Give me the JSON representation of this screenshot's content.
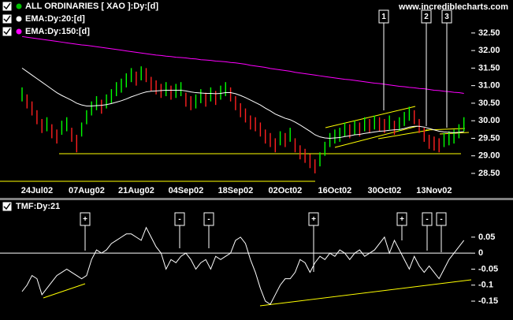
{
  "chart_data": [
    {
      "type": "ohlc",
      "watermark": "www.incrediblecharts.com",
      "categories": [
        null,
        null,
        null,
        "24Jul02",
        null,
        null,
        null,
        null,
        null,
        null,
        null,
        null,
        null,
        "07Aug02",
        null,
        null,
        null,
        null,
        null,
        null,
        null,
        null,
        null,
        "21Aug02",
        null,
        null,
        null,
        null,
        null,
        null,
        null,
        null,
        null,
        "04Sep02",
        null,
        null,
        null,
        null,
        null,
        null,
        null,
        null,
        null,
        "18Sep02",
        null,
        null,
        null,
        null,
        null,
        null,
        null,
        null,
        null,
        "02Oct02",
        null,
        null,
        null,
        null,
        null,
        null,
        null,
        null,
        null,
        "16Oct02",
        null,
        null,
        null,
        null,
        null,
        null,
        null,
        null,
        null,
        "30Oct02",
        null,
        null,
        null,
        null,
        null,
        null,
        null,
        null,
        null,
        "13Nov02",
        null,
        null,
        null,
        null,
        null,
        null
      ],
      "series": [
        {
          "name": "ALL ORDINARIES [ XAO ]:Dy:[d]",
          "color": "#00c000",
          "up_color": "#00ff00",
          "down_color": "#ff2020",
          "high": [
            30.95,
            30.75,
            30.55,
            30.3,
            30.05,
            30.1,
            29.9,
            29.75,
            30.0,
            30.1,
            29.8,
            29.6,
            29.95,
            30.3,
            30.55,
            30.7,
            30.6,
            30.75,
            30.9,
            31.1,
            31.2,
            31.35,
            31.5,
            31.4,
            31.55,
            31.5,
            31.25,
            31.15,
            31.05,
            31.1,
            31.0,
            31.05,
            31.1,
            30.8,
            30.7,
            30.75,
            30.9,
            30.8,
            30.95,
            30.85,
            31.0,
            31.1,
            30.95,
            30.7,
            30.5,
            30.35,
            30.15,
            30.1,
            29.95,
            29.75,
            29.65,
            29.5,
            29.7,
            29.65,
            29.8,
            29.5,
            29.3,
            29.2,
            29.05,
            28.9,
            29.1,
            29.4,
            29.65,
            29.75,
            29.8,
            29.95,
            29.9,
            30.0,
            29.95,
            30.1,
            30.05,
            30.15,
            30.1,
            30.05,
            30.15,
            30.0,
            30.1,
            30.25,
            30.4,
            30.3,
            30.05,
            29.8,
            29.6,
            29.55,
            29.5,
            29.65,
            29.7,
            29.75,
            29.9,
            30.1
          ],
          "low": [
            30.55,
            30.35,
            30.15,
            29.9,
            29.65,
            29.7,
            29.5,
            29.35,
            29.6,
            29.7,
            29.4,
            29.1,
            29.55,
            29.9,
            30.15,
            30.3,
            30.2,
            30.35,
            30.5,
            30.7,
            30.8,
            30.95,
            31.1,
            31.0,
            31.15,
            31.1,
            30.85,
            30.75,
            30.65,
            30.7,
            30.6,
            30.65,
            30.7,
            30.4,
            30.3,
            30.35,
            30.5,
            30.4,
            30.55,
            30.45,
            30.6,
            30.7,
            30.55,
            30.3,
            30.1,
            29.95,
            29.75,
            29.7,
            29.55,
            29.35,
            29.25,
            29.1,
            29.3,
            29.25,
            29.4,
            29.1,
            28.9,
            28.8,
            28.65,
            28.5,
            28.7,
            29.0,
            29.25,
            29.35,
            29.4,
            29.55,
            29.5,
            29.6,
            29.55,
            29.7,
            29.65,
            29.75,
            29.7,
            29.65,
            29.75,
            29.6,
            29.7,
            29.85,
            30.0,
            29.9,
            29.65,
            29.4,
            29.2,
            29.15,
            29.1,
            29.25,
            29.3,
            29.35,
            29.5,
            29.7
          ]
        },
        {
          "name": "EMA:Dy:20:[d]",
          "color": "#ffffff",
          "values": [
            31.5,
            31.4,
            31.3,
            31.2,
            31.1,
            31.0,
            30.9,
            30.8,
            30.72,
            30.65,
            30.58,
            30.5,
            30.45,
            30.42,
            30.42,
            30.43,
            30.44,
            30.46,
            30.49,
            30.53,
            30.57,
            30.62,
            30.68,
            30.73,
            30.78,
            30.82,
            30.84,
            30.85,
            30.86,
            30.87,
            30.87,
            30.87,
            30.87,
            30.85,
            30.82,
            30.8,
            30.79,
            30.78,
            30.78,
            30.77,
            30.78,
            30.8,
            30.8,
            30.77,
            30.72,
            30.66,
            30.59,
            30.52,
            30.45,
            30.36,
            30.28,
            30.19,
            30.13,
            30.07,
            30.03,
            29.96,
            29.88,
            29.79,
            29.7,
            29.6,
            29.54,
            29.51,
            29.5,
            29.51,
            29.52,
            29.55,
            29.57,
            29.6,
            29.61,
            29.64,
            29.66,
            29.68,
            29.7,
            29.71,
            29.73,
            29.74,
            29.75,
            29.78,
            29.82,
            29.84,
            29.84,
            29.82,
            29.78,
            29.74,
            29.7,
            29.68,
            29.67,
            29.66,
            29.67,
            29.69
          ]
        },
        {
          "name": "EMA:Dy:150:[d]",
          "color": "#ff00ff",
          "values": [
            32.4,
            32.38,
            32.36,
            32.34,
            32.32,
            32.3,
            32.28,
            32.26,
            32.24,
            32.22,
            32.2,
            32.18,
            32.16,
            32.15,
            32.13,
            32.11,
            32.09,
            32.07,
            32.05,
            32.03,
            32.01,
            31.99,
            31.97,
            31.95,
            31.93,
            31.91,
            31.89,
            31.87,
            31.86,
            31.84,
            31.83,
            31.81,
            31.8,
            31.79,
            31.77,
            31.76,
            31.74,
            31.73,
            31.72,
            31.7,
            31.69,
            31.68,
            31.66,
            31.65,
            31.63,
            31.61,
            31.58,
            31.56,
            31.54,
            31.52,
            31.49,
            31.47,
            31.45,
            31.43,
            31.41,
            31.38,
            31.36,
            31.34,
            31.32,
            31.3,
            31.28,
            31.26,
            31.24,
            31.22,
            31.2,
            31.18,
            31.17,
            31.15,
            31.13,
            31.11,
            31.09,
            31.07,
            31.06,
            31.04,
            31.02,
            31.0,
            30.98,
            30.97,
            30.95,
            30.94,
            30.92,
            30.91,
            30.89,
            30.87,
            30.86,
            30.84,
            30.83,
            30.81,
            30.8,
            30.78
          ]
        }
      ],
      "ylim": [
        28.23,
        33.44
      ],
      "yticks": [
        {
          "value": 28.5,
          "label": "28.50"
        },
        {
          "value": 29,
          "label": "29.00"
        },
        {
          "value": 29.5,
          "label": "29.50"
        },
        {
          "value": 30,
          "label": "30.00"
        },
        {
          "value": 30.5,
          "label": "30.50"
        },
        {
          "value": 31,
          "label": "31.00"
        },
        {
          "value": 31.5,
          "label": "31.50"
        },
        {
          "value": 32,
          "label": "32.00"
        },
        {
          "value": 32.5,
          "label": "32.50"
        }
      ],
      "annotations": [
        "1",
        "2",
        "3"
      ]
    },
    {
      "type": "line",
      "series": [
        {
          "name": "TMF:Dy:21",
          "color": "#ffffff",
          "values": [
            -0.12,
            -0.1,
            -0.07,
            -0.08,
            -0.13,
            -0.11,
            -0.09,
            -0.07,
            -0.06,
            -0.05,
            -0.06,
            -0.07,
            -0.08,
            -0.07,
            -0.02,
            0.01,
            0.0,
            0.01,
            0.03,
            0.04,
            0.05,
            0.06,
            0.06,
            0.05,
            0.04,
            0.08,
            0.05,
            0.02,
            0.0,
            -0.05,
            -0.02,
            -0.03,
            -0.01,
            0.0,
            -0.02,
            -0.05,
            -0.03,
            -0.02,
            -0.05,
            -0.01,
            -0.02,
            -0.01,
            0.0,
            0.04,
            0.05,
            0.03,
            -0.02,
            -0.06,
            -0.11,
            -0.15,
            -0.16,
            -0.13,
            -0.1,
            -0.08,
            -0.08,
            -0.06,
            -0.02,
            -0.03,
            -0.06,
            -0.03,
            -0.01,
            -0.02,
            0.0,
            -0.01,
            0.01,
            0.0,
            -0.02,
            0.0,
            0.01,
            -0.01,
            0.0,
            0.01,
            0.03,
            0.05,
            0.0,
            0.04,
            0.01,
            -0.02,
            -0.05,
            -0.01,
            -0.04,
            -0.06,
            -0.04,
            -0.06,
            -0.08,
            -0.05,
            -0.02,
            0.0,
            0.02,
            0.04
          ]
        }
      ],
      "ylim": [
        -0.209,
        0.163
      ],
      "yticks": [
        0.05,
        0,
        -0.05,
        -0.1,
        -0.15
      ],
      "zero_line": true,
      "annotations": [
        "+",
        "-",
        "-",
        "+",
        "+",
        "-",
        "-"
      ]
    }
  ]
}
